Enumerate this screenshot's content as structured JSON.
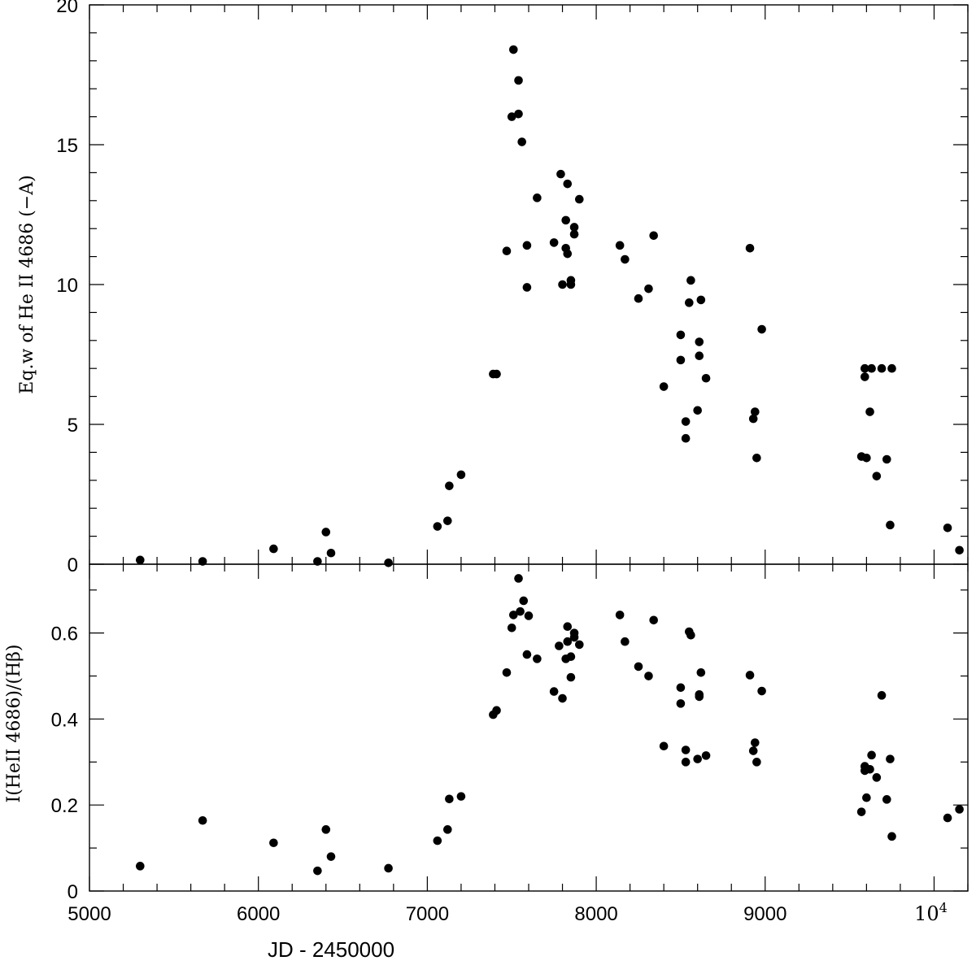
{
  "chart_data": [
    {
      "type": "scatter",
      "panel": "top",
      "ylabel": "Eq.w of He II 4686 (−A)",
      "xlim": [
        5000,
        10200
      ],
      "ylim": [
        0,
        20
      ],
      "yticks": [
        0,
        5,
        10,
        15,
        20
      ],
      "ytick_labels": [
        "0",
        "5",
        "10",
        "15",
        "20"
      ],
      "points": [
        [
          5300,
          0.15
        ],
        [
          5670,
          0.1
        ],
        [
          6090,
          0.55
        ],
        [
          6350,
          0.1
        ],
        [
          6400,
          1.15
        ],
        [
          6430,
          0.4
        ],
        [
          6770,
          0.05
        ],
        [
          7060,
          1.35
        ],
        [
          7120,
          1.55
        ],
        [
          7130,
          2.8
        ],
        [
          7200,
          3.2
        ],
        [
          7390,
          6.8
        ],
        [
          7410,
          6.8
        ],
        [
          7470,
          11.2
        ],
        [
          7500,
          16.0
        ],
        [
          7510,
          18.4
        ],
        [
          7540,
          16.1
        ],
        [
          7540,
          17.3
        ],
        [
          7560,
          15.1
        ],
        [
          7590,
          11.4
        ],
        [
          7590,
          9.9
        ],
        [
          7650,
          13.1
        ],
        [
          7750,
          11.5
        ],
        [
          7790,
          13.95
        ],
        [
          7800,
          10.0
        ],
        [
          7820,
          12.3
        ],
        [
          7830,
          13.6
        ],
        [
          7820,
          11.3
        ],
        [
          7830,
          11.1
        ],
        [
          7850,
          10.0
        ],
        [
          7850,
          10.15
        ],
        [
          7870,
          12.05
        ],
        [
          7870,
          11.8
        ],
        [
          7900,
          13.05
        ],
        [
          8140,
          11.4
        ],
        [
          8170,
          10.9
        ],
        [
          8250,
          9.5
        ],
        [
          8310,
          9.85
        ],
        [
          8340,
          11.75
        ],
        [
          8400,
          6.35
        ],
        [
          8500,
          8.2
        ],
        [
          8500,
          7.3
        ],
        [
          8530,
          5.1
        ],
        [
          8530,
          4.5
        ],
        [
          8550,
          9.35
        ],
        [
          8560,
          10.15
        ],
        [
          8600,
          5.5
        ],
        [
          8610,
          7.95
        ],
        [
          8610,
          7.45
        ],
        [
          8620,
          9.45
        ],
        [
          8650,
          6.65
        ],
        [
          8910,
          11.3
        ],
        [
          8930,
          5.2
        ],
        [
          8940,
          5.45
        ],
        [
          8950,
          3.8
        ],
        [
          8980,
          8.4
        ],
        [
          9570,
          3.85
        ],
        [
          9590,
          7.0
        ],
        [
          9590,
          6.7
        ],
        [
          9600,
          3.8
        ],
        [
          9620,
          5.45
        ],
        [
          9630,
          7.0
        ],
        [
          9660,
          3.15
        ],
        [
          9690,
          7.0
        ],
        [
          9720,
          3.75
        ],
        [
          9740,
          1.4
        ],
        [
          9750,
          7.0
        ],
        [
          10080,
          1.3
        ],
        [
          10150,
          0.5
        ]
      ]
    },
    {
      "type": "scatter",
      "panel": "bottom",
      "xlabel": "JD - 2450000",
      "ylabel": "I(HeII 4686)/(Hβ)",
      "xlim": [
        5000,
        10200
      ],
      "ylim": [
        0,
        0.76
      ],
      "yticks": [
        0,
        0.2,
        0.4,
        0.6
      ],
      "ytick_labels": [
        "0",
        "0.2",
        "0.4",
        "0.6"
      ],
      "xticks": [
        5000,
        6000,
        7000,
        8000,
        9000,
        10000
      ],
      "xtick_labels": [
        "5000",
        "6000",
        "7000",
        "8000",
        "9000"
      ],
      "xtick_label_last_base": "10",
      "xtick_label_last_exp": "4",
      "points": [
        [
          5300,
          0.058
        ],
        [
          5670,
          0.164
        ],
        [
          6090,
          0.112
        ],
        [
          6350,
          0.047
        ],
        [
          6400,
          0.143
        ],
        [
          6430,
          0.08
        ],
        [
          6770,
          0.053
        ],
        [
          7060,
          0.117
        ],
        [
          7120,
          0.143
        ],
        [
          7130,
          0.214
        ],
        [
          7200,
          0.22
        ],
        [
          7390,
          0.41
        ],
        [
          7410,
          0.42
        ],
        [
          7470,
          0.508
        ],
        [
          7500,
          0.612
        ],
        [
          7510,
          0.642
        ],
        [
          7540,
          0.727
        ],
        [
          7550,
          0.65
        ],
        [
          7570,
          0.675
        ],
        [
          7590,
          0.55
        ],
        [
          7600,
          0.64
        ],
        [
          7650,
          0.54
        ],
        [
          7750,
          0.464
        ],
        [
          7780,
          0.57
        ],
        [
          7800,
          0.448
        ],
        [
          7820,
          0.54
        ],
        [
          7830,
          0.58
        ],
        [
          7830,
          0.615
        ],
        [
          7850,
          0.497
        ],
        [
          7850,
          0.545
        ],
        [
          7870,
          0.6
        ],
        [
          7870,
          0.59
        ],
        [
          7900,
          0.573
        ],
        [
          8140,
          0.642
        ],
        [
          8170,
          0.58
        ],
        [
          8250,
          0.522
        ],
        [
          8310,
          0.5
        ],
        [
          8340,
          0.63
        ],
        [
          8400,
          0.337
        ],
        [
          8500,
          0.473
        ],
        [
          8500,
          0.436
        ],
        [
          8530,
          0.328
        ],
        [
          8530,
          0.3
        ],
        [
          8550,
          0.603
        ],
        [
          8560,
          0.595
        ],
        [
          8600,
          0.307
        ],
        [
          8610,
          0.457
        ],
        [
          8610,
          0.452
        ],
        [
          8620,
          0.508
        ],
        [
          8650,
          0.315
        ],
        [
          8910,
          0.502
        ],
        [
          8930,
          0.326
        ],
        [
          8940,
          0.345
        ],
        [
          8950,
          0.3
        ],
        [
          8980,
          0.465
        ],
        [
          9570,
          0.184
        ],
        [
          9590,
          0.29
        ],
        [
          9590,
          0.28
        ],
        [
          9600,
          0.217
        ],
        [
          9620,
          0.283
        ],
        [
          9630,
          0.316
        ],
        [
          9660,
          0.264
        ],
        [
          9690,
          0.455
        ],
        [
          9720,
          0.213
        ],
        [
          9740,
          0.307
        ],
        [
          9750,
          0.127
        ],
        [
          10080,
          0.17
        ],
        [
          10150,
          0.19
        ]
      ]
    }
  ]
}
